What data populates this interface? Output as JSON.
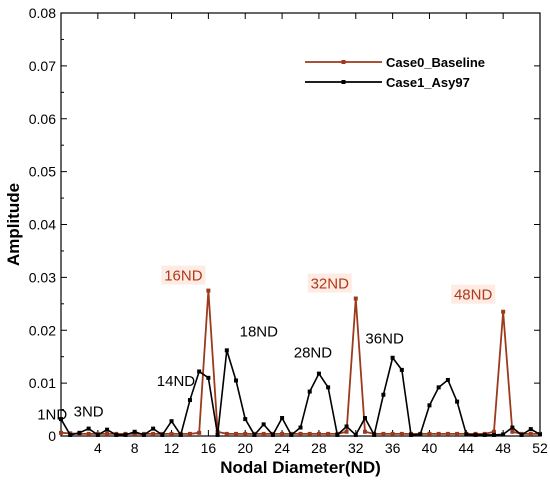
{
  "chart_data": {
    "type": "line",
    "xlabel": "Nodal Diameter(ND)",
    "ylabel": "Amplitude",
    "xlim": [
      0,
      52
    ],
    "ylim": [
      0,
      0.08
    ],
    "xticks": [
      4,
      8,
      12,
      16,
      20,
      24,
      28,
      32,
      36,
      40,
      44,
      48,
      52
    ],
    "xtick_labels": [
      "4",
      "8",
      "12",
      "16",
      "20",
      "24",
      "28",
      "32",
      "36",
      "40",
      "44",
      "48",
      "52"
    ],
    "yticks": [
      0,
      0.01,
      0.02,
      0.03,
      0.04,
      0.05,
      0.06,
      0.07,
      0.08
    ],
    "ytick_labels": [
      "0",
      "0.01",
      "0.02",
      "0.03",
      "0.04",
      "0.05",
      "0.06",
      "0.07",
      "0.08"
    ],
    "grid": false,
    "legend_position": "top-right",
    "x": [
      0,
      1,
      2,
      3,
      4,
      5,
      6,
      7,
      8,
      9,
      10,
      11,
      12,
      13,
      14,
      15,
      16,
      17,
      18,
      19,
      20,
      21,
      22,
      23,
      24,
      25,
      26,
      27,
      28,
      29,
      30,
      31,
      32,
      33,
      34,
      35,
      36,
      37,
      38,
      39,
      40,
      41,
      42,
      43,
      44,
      45,
      46,
      47,
      48,
      49,
      50,
      51,
      52
    ],
    "series": [
      {
        "name": "Case0_Baseline",
        "color": "#9b3a1c",
        "values": [
          0.0006,
          0.0005,
          0.0004,
          0.0004,
          0.0004,
          0.0004,
          0.0004,
          0.0004,
          0.0004,
          0.0004,
          0.0004,
          0.0004,
          0.0004,
          0.0004,
          0.0004,
          0.0006,
          0.0275,
          0.0008,
          0.0004,
          0.0004,
          0.0004,
          0.0004,
          0.0004,
          0.0004,
          0.0004,
          0.0004,
          0.0004,
          0.0004,
          0.0004,
          0.0004,
          0.0004,
          0.0008,
          0.026,
          0.0008,
          0.0004,
          0.0004,
          0.0004,
          0.0004,
          0.0004,
          0.0004,
          0.0004,
          0.0004,
          0.0004,
          0.0004,
          0.0004,
          0.0004,
          0.0004,
          0.0008,
          0.0235,
          0.0008,
          0.0004,
          0.0004,
          0.0004
        ]
      },
      {
        "name": "Case1_Asy97",
        "color": "#000000",
        "values": [
          0.0032,
          0.0002,
          0.0006,
          0.0014,
          0.0002,
          0.0012,
          0.0002,
          0.0002,
          0.0008,
          0.0002,
          0.0014,
          0.0002,
          0.0028,
          0.0002,
          0.0068,
          0.0122,
          0.011,
          0.0002,
          0.0162,
          0.0105,
          0.0032,
          0.0002,
          0.0022,
          0.0002,
          0.0034,
          0.0002,
          0.0016,
          0.0084,
          0.0118,
          0.0092,
          0.0002,
          0.0018,
          0.0002,
          0.0034,
          0.0002,
          0.0078,
          0.0148,
          0.0125,
          0.0002,
          0.0003,
          0.0058,
          0.0092,
          0.0106,
          0.0065,
          0.0003,
          0.0002,
          0.0002,
          0.0002,
          0.0003,
          0.0016,
          0.0002,
          0.0013,
          0.0003
        ]
      }
    ],
    "annotations": [
      {
        "text": "1ND",
        "x": 1,
        "color": "#000000",
        "boxed": false
      },
      {
        "text": "3ND",
        "x": 3,
        "color": "#000000",
        "boxed": false
      },
      {
        "text": "14ND",
        "x": 14,
        "color": "#000000",
        "boxed": false
      },
      {
        "text": "16ND",
        "x": 16,
        "color": "#b03a1a",
        "boxed": true
      },
      {
        "text": "18ND",
        "x": 18,
        "color": "#000000",
        "boxed": false
      },
      {
        "text": "28ND",
        "x": 28,
        "color": "#000000",
        "boxed": false
      },
      {
        "text": "32ND",
        "x": 32,
        "color": "#b03a1a",
        "boxed": true
      },
      {
        "text": "36ND",
        "x": 36,
        "color": "#000000",
        "boxed": false
      },
      {
        "text": "48ND",
        "x": 48,
        "color": "#b03a1a",
        "boxed": true
      }
    ]
  }
}
